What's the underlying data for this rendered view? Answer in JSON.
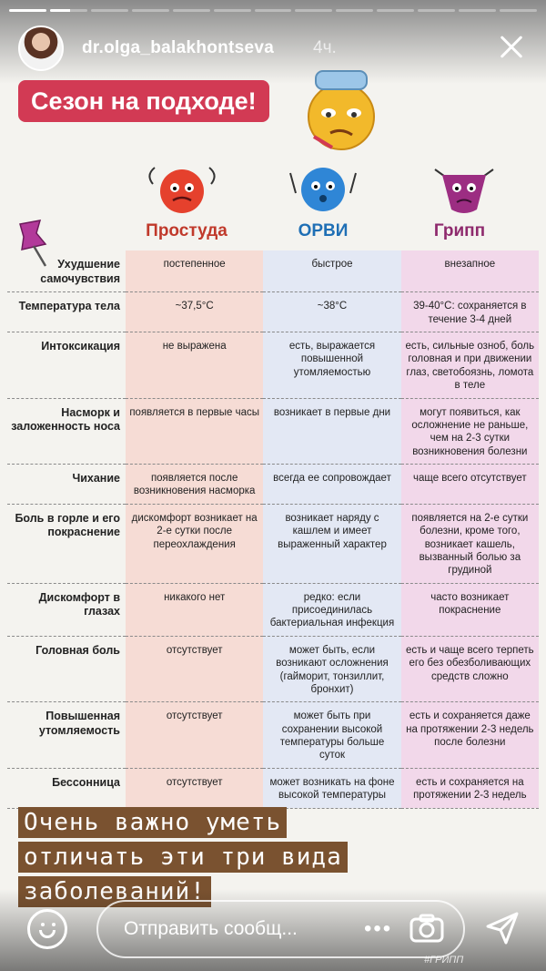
{
  "story": {
    "username": "dr.olga_balakhontseva",
    "time_ago": "4ч.",
    "progress": [
      1.0,
      0.55,
      0.0,
      0.0,
      0.0,
      0.0,
      0.0,
      0.0,
      0.0,
      0.0,
      0.0,
      0.0,
      0.0
    ]
  },
  "poster": {
    "badge": "Сезон на подходе!",
    "columns": [
      "Простуда",
      "ОРВИ",
      "Грипп"
    ],
    "rows": [
      {
        "label": "Ухудшение самочувствия",
        "v": [
          "постепенное",
          "быстрое",
          "внезапное"
        ]
      },
      {
        "label": "Температура тела",
        "v": [
          "~37,5°C",
          "~38°C",
          "39-40°C: сохраняется в течение 3-4 дней"
        ]
      },
      {
        "label": "Интоксикация",
        "v": [
          "не выражена",
          "есть, выражается повышенной утомляемостью",
          "есть, сильные озноб, боль головная и при движении глаз, светобоязнь, ломота в теле"
        ]
      },
      {
        "label": "Насморк и заложенность носа",
        "v": [
          "появляется в первые часы",
          "возникает в первые дни",
          "могут появиться, как осложнение не раньше, чем на 2-3 сутки возникновения болезни"
        ]
      },
      {
        "label": "Чихание",
        "v": [
          "появляется после возникновения насморка",
          "всегда ее сопровождает",
          "чаще всего отсутствует"
        ]
      },
      {
        "label": "Боль в горле и его покраснение",
        "v": [
          "дискомфорт возникает на 2-е сутки после переохлаждения",
          "возникает наряду с кашлем и имеет выраженный характер",
          "появляется на 2-е сутки болезни, кроме того, возникает кашель, вызванный болью за грудиной"
        ]
      },
      {
        "label": "Дискомфорт в глазах",
        "v": [
          "никакого нет",
          "редко: если присоединилась бактериальная инфекция",
          "часто возникает покраснение"
        ]
      },
      {
        "label": "Головная боль",
        "v": [
          "отсутствует",
          "может быть, если возникают осложнения (гайморит, тонзиллит, бронхит)",
          "есть и чаще всего терпеть его без обезболивающих средств сложно"
        ]
      },
      {
        "label": "Повышенная утомляемость",
        "v": [
          "отсутствует",
          "может быть при сохранении высокой температуры больше суток",
          "есть и сохраняется даже на протяжении 2-3 недель после болезни"
        ]
      },
      {
        "label": "Бессонница",
        "v": [
          "отсутствует",
          "может возникать на фоне высокой температуры",
          "есть и сохраняется на протяжении 2-3 недель"
        ]
      }
    ]
  },
  "caption": {
    "line1": "Очень важно уметь",
    "line2": "отличать эти три вида",
    "line3": "заболеваний!"
  },
  "reply": {
    "placeholder": "Отправить сообщ...",
    "more": "•••",
    "hashtag": "#ГРИПП"
  },
  "colors": {
    "badge": "#d23a54",
    "prostuda": "#c0392b",
    "orvi": "#1f6fb5",
    "gripp": "#8e2a6d",
    "caption_bg": "#7a5230"
  }
}
